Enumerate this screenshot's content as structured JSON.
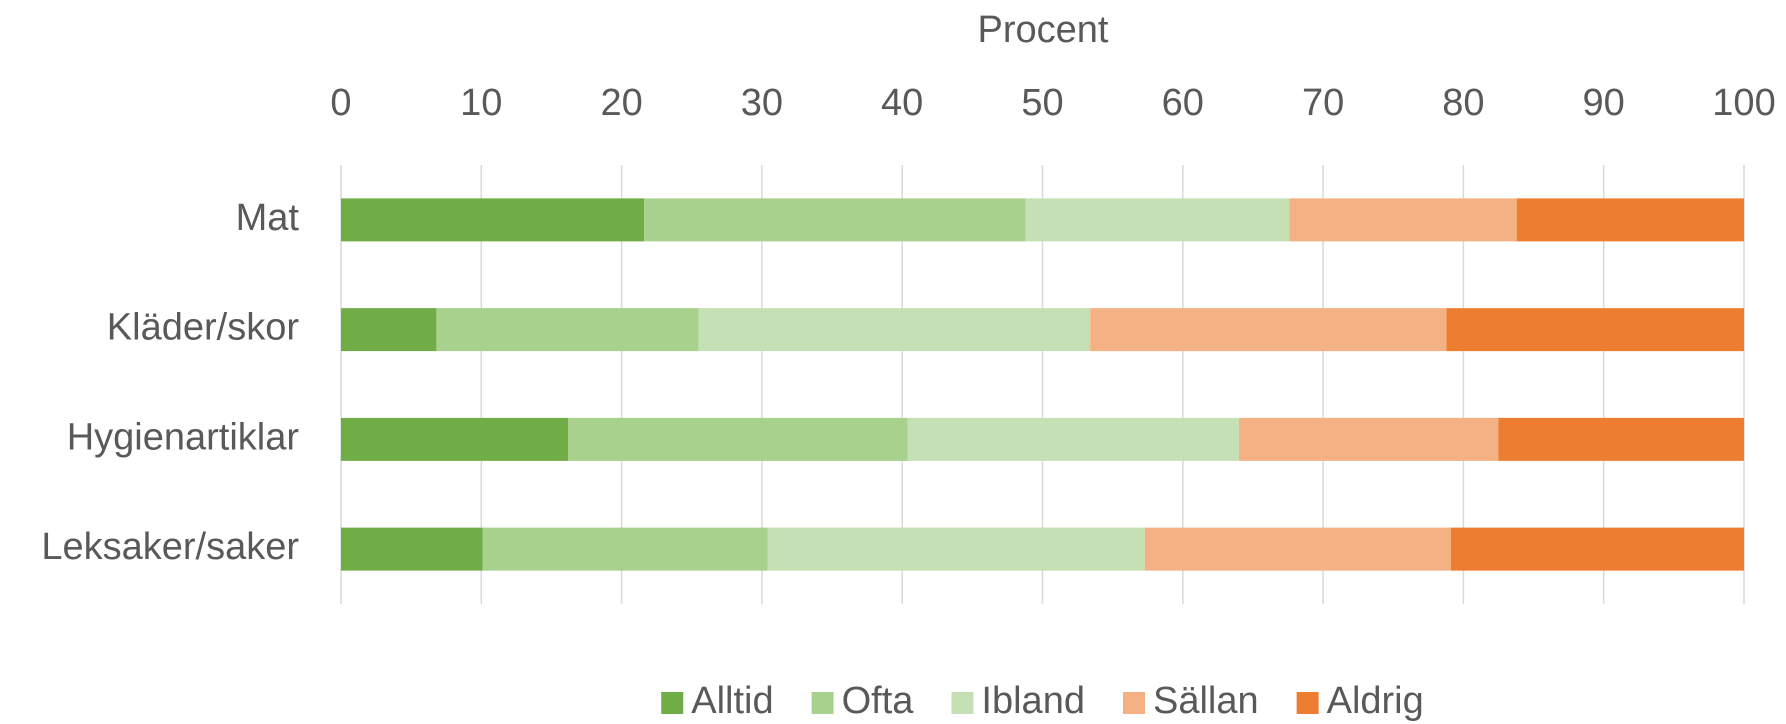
{
  "chart_data": {
    "type": "stacked_barh",
    "xlabel": "Procent",
    "categories": [
      "Mat",
      "Kläder/skor",
      "Hygienartiklar",
      "Leksaker/saker"
    ],
    "series": [
      {
        "name": "Alltid",
        "color": "#70ad47",
        "values": [
          21.6,
          6.8,
          16.2,
          10.1
        ]
      },
      {
        "name": "Ofta",
        "color": "#a9d18e",
        "values": [
          27.2,
          18.7,
          24.2,
          20.3
        ]
      },
      {
        "name": "Ibland",
        "color": "#c5e0b4",
        "values": [
          18.8,
          27.9,
          23.6,
          26.9
        ]
      },
      {
        "name": "Sällan",
        "color": "#f4b183",
        "values": [
          16.2,
          25.4,
          18.5,
          21.8
        ]
      },
      {
        "name": "Aldrig",
        "color": "#ed7d31",
        "values": [
          16.2,
          21.2,
          17.5,
          20.9
        ]
      }
    ],
    "xlim": [
      0,
      100
    ],
    "xticks": [
      0,
      10,
      20,
      30,
      40,
      50,
      60,
      70,
      80,
      90,
      100
    ],
    "grid": true,
    "legend": "bottom"
  }
}
